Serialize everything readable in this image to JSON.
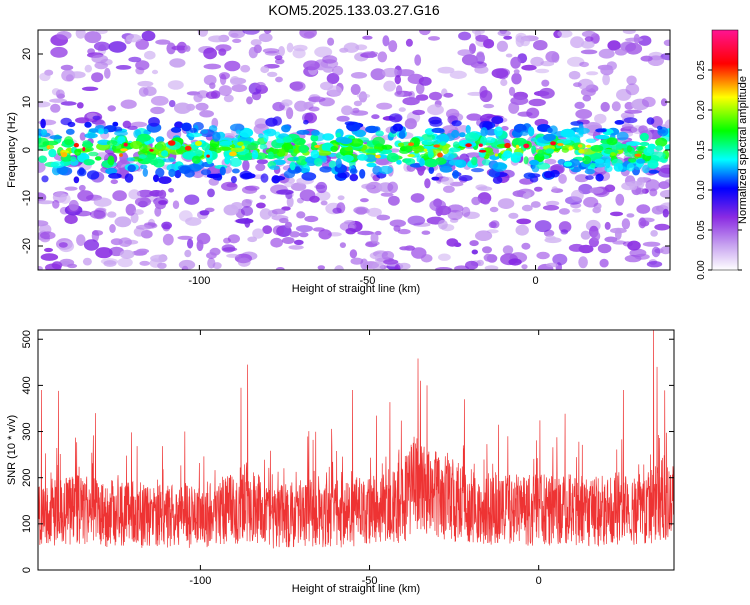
{
  "title": "KOM5.2025.133.03.27.G16",
  "spectrogram": {
    "xlabel": "Height of straight line (km)",
    "ylabel": "Frequency (Hz)",
    "xlim": [
      -148,
      40
    ],
    "ylim": [
      -25,
      25
    ],
    "x_ticks": [
      -100,
      -50,
      0
    ],
    "y_ticks": [
      -20,
      -10,
      0,
      10,
      20
    ],
    "signal_band_hz": [
      -6,
      6
    ]
  },
  "colorbar": {
    "label": "Normalized spectral amplitude",
    "range": [
      0,
      0.3
    ],
    "ticks": [
      0.0,
      0.05,
      0.1,
      0.15,
      0.2,
      0.25
    ],
    "tick_labels": [
      "0.00",
      "0.05",
      "0.10",
      "0.15",
      "0.20",
      "0.25"
    ],
    "colors": [
      "#ffffff",
      "#8a2be2",
      "#0000ff",
      "#00ffff",
      "#00ff00",
      "#ffff00",
      "#ff0000",
      "#ff1493"
    ]
  },
  "chart_data": [
    {
      "type": "heatmap",
      "title": "KOM5.2025.133.03.27.G16",
      "xlabel": "Height of straight line (km)",
      "ylabel": "Frequency (Hz)",
      "xlim": [
        -148,
        40
      ],
      "ylim": [
        -25,
        25
      ],
      "color_scale_label": "Normalized spectral amplitude",
      "color_range": [
        0,
        0.3
      ]
    },
    {
      "type": "line",
      "xlabel": "Height of straight line (km)",
      "ylabel": "SNR (10 * v/v)",
      "xlim": [
        -148,
        40
      ],
      "ylim": [
        0,
        520
      ],
      "x_ticks": [
        -100,
        -50,
        0
      ],
      "y_ticks": [
        0,
        100,
        200,
        300,
        400,
        500
      ],
      "line_color": "#ee3333",
      "series": [
        {
          "x": [
            -148,
            -140,
            -130,
            -120,
            -110,
            -100,
            -90,
            -86,
            -80,
            -70,
            -60,
            -50,
            -40,
            -36,
            -30,
            -20,
            -10,
            0,
            10,
            20,
            30,
            34,
            38,
            40
          ],
          "values": [
            120,
            130,
            125,
            120,
            115,
            120,
            130,
            150,
            115,
            125,
            120,
            130,
            150,
            190,
            160,
            140,
            130,
            130,
            130,
            125,
            135,
            140,
            160,
            140
          ],
          "peaks": [
            [
              -147,
              390
            ],
            [
              -142,
              388
            ],
            [
              -131,
              340
            ],
            [
              -86,
              445
            ],
            [
              -88,
              395
            ],
            [
              -55,
              390
            ],
            [
              -35,
              410
            ],
            [
              -33,
              400
            ],
            [
              -22,
              370
            ],
            [
              25,
              390
            ],
            [
              34,
              520
            ],
            [
              35,
              440
            ]
          ]
        }
      ]
    }
  ]
}
